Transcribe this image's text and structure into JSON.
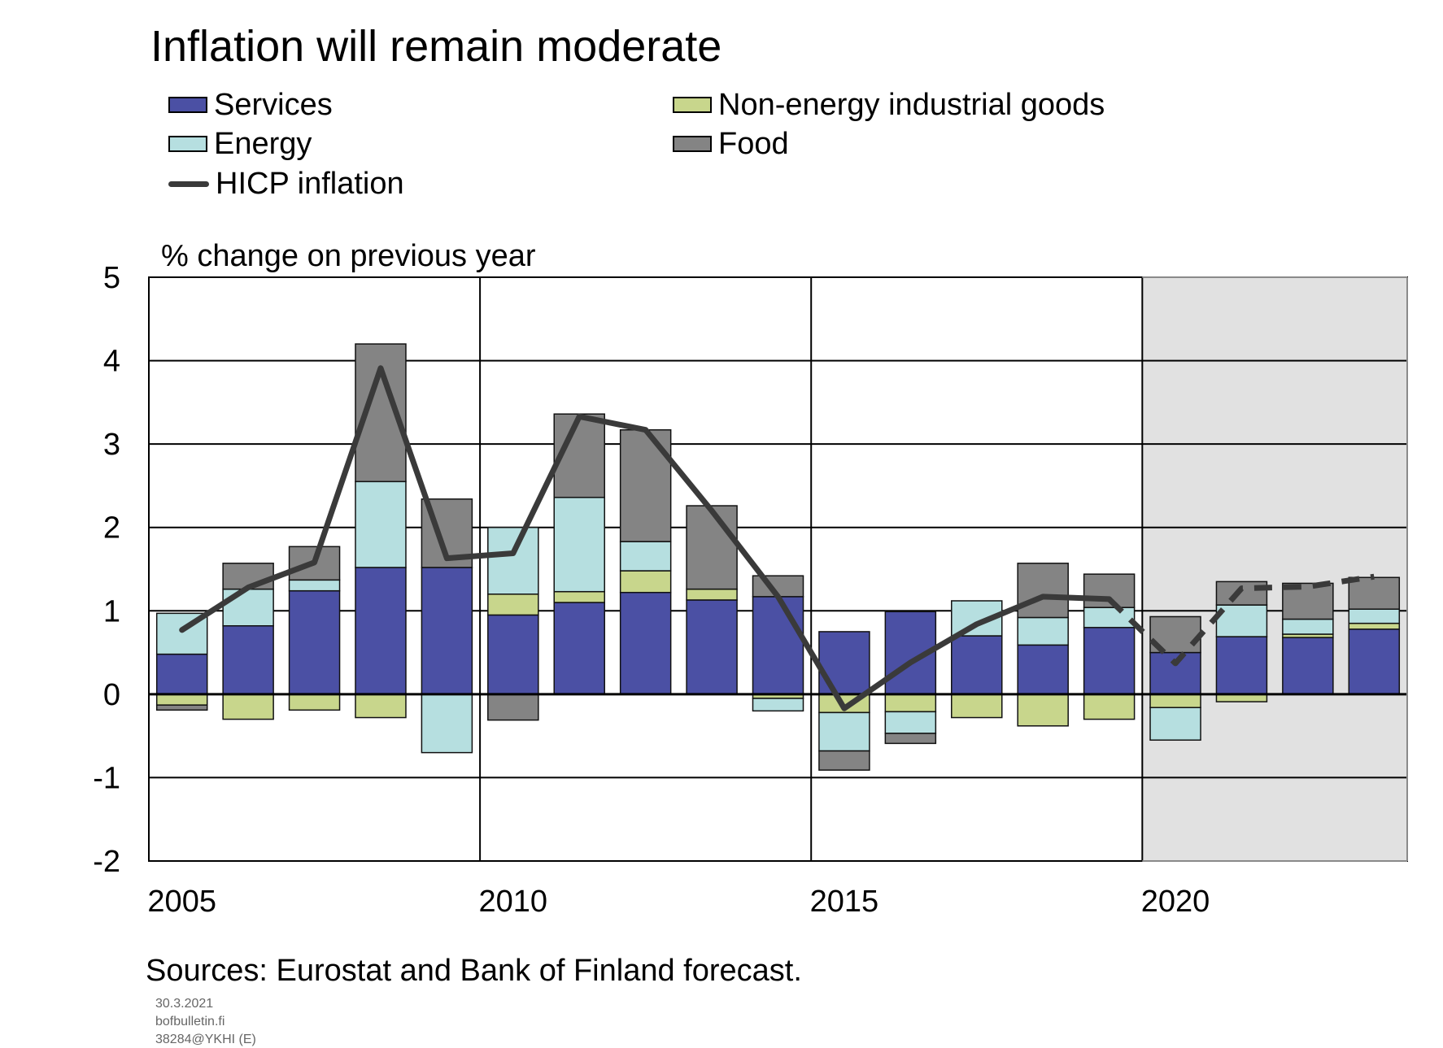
{
  "chart_data": {
    "type": "bar",
    "stacked": true,
    "title": "Inflation will remain moderate",
    "unit_label": "% change on previous year",
    "ylim": [
      -2,
      5
    ],
    "yticks": [
      5,
      4,
      3,
      2,
      1,
      0,
      -1,
      -2
    ],
    "xlim": [
      2004.5,
      2023.5
    ],
    "xticks": [
      2005,
      2010,
      2015,
      2020
    ],
    "forecast_start": 2020,
    "grid": true,
    "legend_position": "top",
    "categories": [
      2005,
      2006,
      2007,
      2008,
      2009,
      2010,
      2011,
      2012,
      2013,
      2014,
      2015,
      2016,
      2017,
      2018,
      2019,
      2020,
      2021,
      2022,
      2023
    ],
    "series": [
      {
        "key": "services",
        "name": "Services",
        "color": "#4b50a4",
        "values": [
          0.48,
          0.82,
          1.24,
          1.52,
          1.52,
          0.95,
          1.1,
          1.22,
          1.13,
          1.17,
          0.75,
          0.99,
          0.7,
          0.59,
          0.8,
          0.5,
          0.69,
          0.68,
          0.78
        ]
      },
      {
        "key": "non_energy",
        "name": "Non-energy industrial goods",
        "color": "#c8d68c",
        "values": [
          -0.13,
          -0.3,
          -0.19,
          -0.28,
          0.0,
          0.25,
          0.13,
          0.26,
          0.13,
          -0.05,
          -0.22,
          -0.21,
          -0.28,
          -0.38,
          -0.3,
          -0.16,
          -0.09,
          0.04,
          0.07
        ]
      },
      {
        "key": "energy",
        "name": "Energy",
        "color": "#b6dfe0",
        "values": [
          0.49,
          0.44,
          0.13,
          1.03,
          -0.7,
          0.8,
          1.13,
          0.35,
          0.0,
          -0.15,
          -0.46,
          -0.26,
          0.42,
          0.33,
          0.24,
          -0.39,
          0.38,
          0.18,
          0.17
        ]
      },
      {
        "key": "food",
        "name": "Food",
        "color": "#848484",
        "values": [
          -0.06,
          0.31,
          0.4,
          1.65,
          0.82,
          -0.31,
          1.0,
          1.34,
          1.0,
          0.25,
          -0.23,
          -0.12,
          0.0,
          0.65,
          0.4,
          0.43,
          0.28,
          0.43,
          0.38
        ]
      }
    ],
    "hicp": {
      "name": "HICP inflation",
      "color": "#3a3a3a",
      "x": [
        2005,
        2006,
        2007,
        2008,
        2009,
        2010,
        2011,
        2012,
        2013,
        2014,
        2015,
        2016,
        2017,
        2018,
        2019,
        2020,
        2021,
        2022,
        2023
      ],
      "values": [
        0.77,
        1.28,
        1.58,
        3.91,
        1.63,
        1.69,
        3.33,
        3.17,
        2.2,
        1.17,
        -0.17,
        0.38,
        0.84,
        1.17,
        1.14,
        0.37,
        1.27,
        1.29,
        1.41
      ]
    },
    "sources": "Sources: Eurostat and Bank of Finland forecast."
  },
  "footer": {
    "date": "30.3.2021",
    "site": "bofbulletin.fi",
    "code": "38284@YKHI  (E)"
  }
}
